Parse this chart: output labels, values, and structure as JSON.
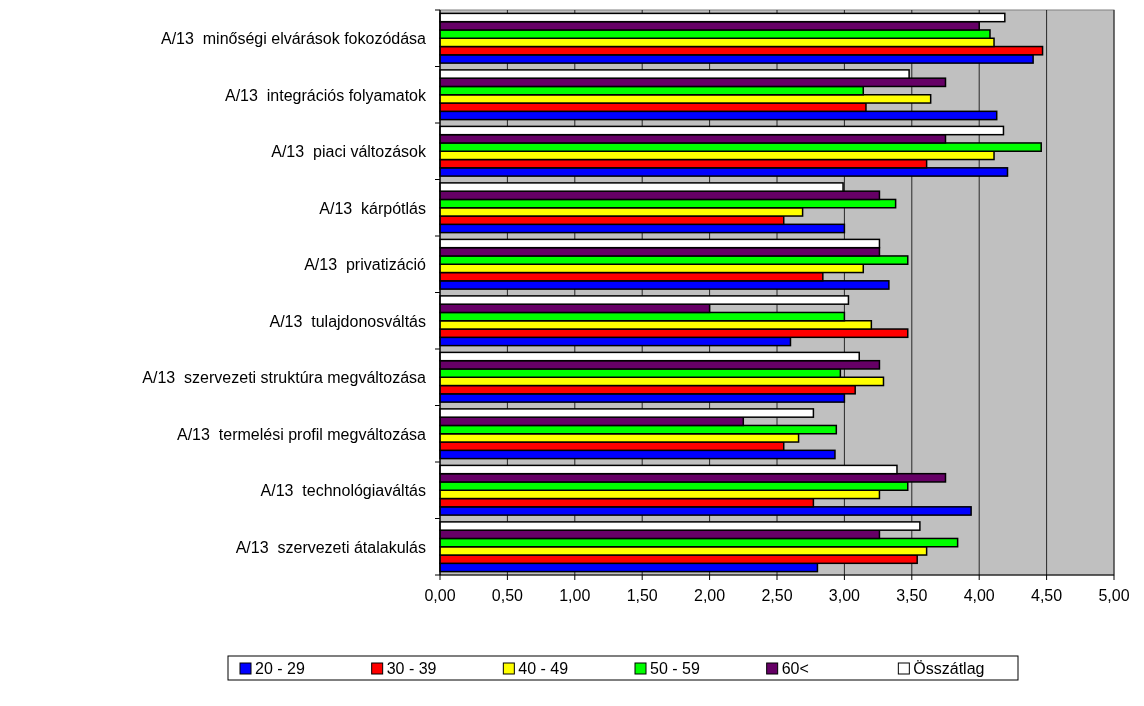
{
  "chart_data": {
    "type": "bar",
    "orientation": "horizontal",
    "categories": [
      "A/13  minőségi elvárások fokozódása",
      "A/13  integrációs folyamatok",
      "A/13  piaci változások",
      "A/13  kárpótlás",
      "A/13  privatizáció",
      "A/13  tulajdonosváltás",
      "A/13  szervezeti struktúra megváltozása",
      "A/13  termelési profil megváltozása",
      "A/13  technológiaváltás",
      "A/13  szervezeti átalakulás"
    ],
    "series": [
      {
        "name": "20 - 29",
        "color": "#0000ff",
        "values": [
          4.4,
          4.13,
          4.21,
          3.0,
          3.33,
          2.6,
          3.0,
          2.93,
          3.94,
          2.8
        ]
      },
      {
        "name": "30 - 39",
        "color": "#ff0000",
        "values": [
          4.47,
          3.16,
          3.61,
          2.55,
          2.84,
          3.47,
          3.08,
          2.55,
          2.77,
          3.54
        ]
      },
      {
        "name": "40 - 49",
        "color": "#ffff00",
        "values": [
          4.11,
          3.64,
          4.11,
          2.69,
          3.14,
          3.2,
          3.29,
          2.66,
          3.26,
          3.61
        ]
      },
      {
        "name": "50 - 59",
        "color": "#00ff00",
        "values": [
          4.08,
          3.14,
          4.46,
          3.38,
          3.47,
          3.0,
          2.97,
          2.94,
          3.47,
          3.84
        ]
      },
      {
        "name": "60<",
        "color": "#660066",
        "values": [
          4.0,
          3.75,
          3.75,
          3.26,
          3.26,
          2.0,
          3.26,
          2.25,
          3.75,
          3.26
        ]
      },
      {
        "name": "Összátlag",
        "color": "#ffffff",
        "values": [
          4.19,
          3.48,
          4.18,
          2.99,
          3.26,
          3.03,
          3.11,
          2.77,
          3.39,
          3.56
        ]
      }
    ],
    "xlim": [
      0,
      5
    ],
    "xticks": [
      {
        "value": 0,
        "label": "0,00"
      },
      {
        "value": 0.5,
        "label": "0,50"
      },
      {
        "value": 1,
        "label": "1,00"
      },
      {
        "value": 1.5,
        "label": "1,50"
      },
      {
        "value": 2,
        "label": "2,00"
      },
      {
        "value": 2.5,
        "label": "2,50"
      },
      {
        "value": 3,
        "label": "3,00"
      },
      {
        "value": 3.5,
        "label": "3,50"
      },
      {
        "value": 4,
        "label": "4,00"
      },
      {
        "value": 4.5,
        "label": "4,50"
      },
      {
        "value": 5,
        "label": "5,00"
      }
    ],
    "grid": "x",
    "legend": "bottom"
  }
}
